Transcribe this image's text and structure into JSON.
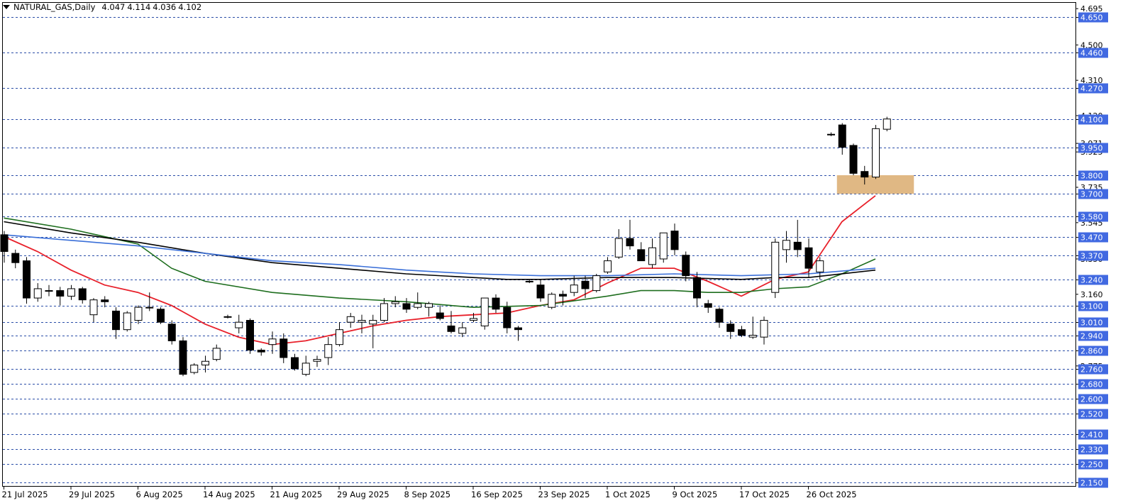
{
  "header": {
    "symbol": "NATURAL_GAS,Daily",
    "open": "4.047",
    "high": "4.114",
    "low": "4.036",
    "close": "4.102"
  },
  "colors": {
    "grid": "#2b4ea8",
    "label_bg": "#4169e1",
    "ema_fast": "#e8202a",
    "ema_mid": "#1e6e1e",
    "sma_long": "#000000",
    "ema_long": "#3a6fd8",
    "zone": "#e0b884"
  },
  "chart_data": {
    "type": "candlestick",
    "symbol": "NATURAL_GAS",
    "timeframe": "Daily",
    "ylim": [
      2.13,
      4.73
    ],
    "level_labels": [
      "4.650",
      "4.460",
      "4.270",
      "4.100",
      "3.950",
      "3.800",
      "3.700",
      "3.580",
      "3.470",
      "3.370",
      "3.240",
      "3.100",
      "3.010",
      "2.940",
      "2.860",
      "2.760",
      "2.680",
      "2.600",
      "2.520",
      "2.410",
      "2.330",
      "2.250",
      "2.150"
    ],
    "scale_ticks": [
      "4.695",
      "4.500",
      "4.310",
      "4.120",
      "3.925",
      "3.735",
      "3.545",
      "3.350",
      "3.160",
      "3.971",
      "2.775"
    ],
    "x_ticks": [
      {
        "index": 0,
        "label": "21 Jul 2025"
      },
      {
        "index": 6,
        "label": "29 Jul 2025"
      },
      {
        "index": 12,
        "label": "6 Aug 2025"
      },
      {
        "index": 18,
        "label": "14 Aug 2025"
      },
      {
        "index": 24,
        "label": "21 Aug 2025"
      },
      {
        "index": 30,
        "label": "29 Aug 2025"
      },
      {
        "index": 36,
        "label": "8 Sep 2025"
      },
      {
        "index": 42,
        "label": "16 Sep 2025"
      },
      {
        "index": 48,
        "label": "23 Sep 2025"
      },
      {
        "index": 54,
        "label": "1 Oct 2025"
      },
      {
        "index": 60,
        "label": "9 Oct 2025"
      },
      {
        "index": 66,
        "label": "17 Oct 2025"
      },
      {
        "index": 72,
        "label": "26 Oct 2025"
      }
    ],
    "candles": [
      [
        3.48,
        3.5,
        3.33,
        3.39
      ],
      [
        3.38,
        3.4,
        3.3,
        3.33
      ],
      [
        3.34,
        3.36,
        3.11,
        3.14
      ],
      [
        3.14,
        3.22,
        3.12,
        3.19
      ],
      [
        3.18,
        3.21,
        3.15,
        3.18
      ],
      [
        3.18,
        3.2,
        3.1,
        3.15
      ],
      [
        3.15,
        3.21,
        3.13,
        3.19
      ],
      [
        3.19,
        3.2,
        3.11,
        3.13
      ],
      [
        3.05,
        3.14,
        3.01,
        3.13
      ],
      [
        3.13,
        3.15,
        3.09,
        3.12
      ],
      [
        3.07,
        3.09,
        2.92,
        2.97
      ],
      [
        2.97,
        3.07,
        2.96,
        3.06
      ],
      [
        3.02,
        3.1,
        3.0,
        3.09
      ],
      [
        3.09,
        3.17,
        3.07,
        3.09
      ],
      [
        3.08,
        3.09,
        3.0,
        3.01
      ],
      [
        3.0,
        3.02,
        2.89,
        2.91
      ],
      [
        2.91,
        2.93,
        2.72,
        2.73
      ],
      [
        2.74,
        2.79,
        2.73,
        2.78
      ],
      [
        2.78,
        2.83,
        2.74,
        2.8
      ],
      [
        2.81,
        2.89,
        2.8,
        2.87
      ],
      [
        3.04,
        3.05,
        3.03,
        3.04
      ],
      [
        2.98,
        3.05,
        2.95,
        3.01
      ],
      [
        3.02,
        3.03,
        2.84,
        2.86
      ],
      [
        2.86,
        2.87,
        2.83,
        2.85
      ],
      [
        2.89,
        2.96,
        2.84,
        2.92
      ],
      [
        2.92,
        2.95,
        2.79,
        2.82
      ],
      [
        2.82,
        2.84,
        2.75,
        2.76
      ],
      [
        2.73,
        2.83,
        2.72,
        2.79
      ],
      [
        2.8,
        2.83,
        2.77,
        2.81
      ],
      [
        2.82,
        2.93,
        2.78,
        2.89
      ],
      [
        2.89,
        3.01,
        2.88,
        2.97
      ],
      [
        3.01,
        3.06,
        2.98,
        3.04
      ],
      [
        3.01,
        3.05,
        2.95,
        3.02
      ],
      [
        3.0,
        3.05,
        2.87,
        3.02
      ],
      [
        3.02,
        3.14,
        3.01,
        3.11
      ],
      [
        3.11,
        3.15,
        3.09,
        3.12
      ],
      [
        3.11,
        3.14,
        3.06,
        3.08
      ],
      [
        3.09,
        3.17,
        3.08,
        3.11
      ],
      [
        3.09,
        3.12,
        3.04,
        3.11
      ],
      [
        3.06,
        3.1,
        3.02,
        3.03
      ],
      [
        2.99,
        3.07,
        2.95,
        2.96
      ],
      [
        2.95,
        3.01,
        2.93,
        2.98
      ],
      [
        3.02,
        3.06,
        3.01,
        3.03
      ],
      [
        2.99,
        3.14,
        2.97,
        3.14
      ],
      [
        3.14,
        3.16,
        3.06,
        3.08
      ],
      [
        3.09,
        3.12,
        2.95,
        2.98
      ],
      [
        2.98,
        2.99,
        2.91,
        2.97
      ],
      [
        3.23,
        3.24,
        3.22,
        3.23
      ],
      [
        3.21,
        3.24,
        3.12,
        3.14
      ],
      [
        3.09,
        3.17,
        3.08,
        3.16
      ],
      [
        3.16,
        3.18,
        3.1,
        3.15
      ],
      [
        3.17,
        3.26,
        3.15,
        3.21
      ],
      [
        3.23,
        3.26,
        3.14,
        3.19
      ],
      [
        3.18,
        3.27,
        3.17,
        3.26
      ],
      [
        3.28,
        3.36,
        3.27,
        3.34
      ],
      [
        3.36,
        3.51,
        3.35,
        3.46
      ],
      [
        3.46,
        3.56,
        3.4,
        3.42
      ],
      [
        3.4,
        3.44,
        3.35,
        3.34
      ],
      [
        3.32,
        3.46,
        3.3,
        3.41
      ],
      [
        3.35,
        3.49,
        3.33,
        3.49
      ],
      [
        3.5,
        3.54,
        3.37,
        3.4
      ],
      [
        3.37,
        3.39,
        3.23,
        3.26
      ],
      [
        3.25,
        3.28,
        3.09,
        3.14
      ],
      [
        3.11,
        3.13,
        3.06,
        3.09
      ],
      [
        3.08,
        3.09,
        2.98,
        3.01
      ],
      [
        3.0,
        3.02,
        2.92,
        2.96
      ],
      [
        2.97,
        2.99,
        2.93,
        2.94
      ],
      [
        2.93,
        3.04,
        2.92,
        2.94
      ],
      [
        2.93,
        3.04,
        2.89,
        3.02
      ],
      [
        3.17,
        3.46,
        3.14,
        3.44
      ],
      [
        3.4,
        3.5,
        3.33,
        3.45
      ],
      [
        3.44,
        3.56,
        3.36,
        3.4
      ],
      [
        3.41,
        3.46,
        3.25,
        3.3
      ],
      [
        3.28,
        3.36,
        3.24,
        3.34
      ],
      [
        4.02,
        4.03,
        4.01,
        4.02
      ],
      [
        4.07,
        4.08,
        3.91,
        3.95
      ],
      [
        3.96,
        3.97,
        3.8,
        3.81
      ],
      [
        3.82,
        3.85,
        3.75,
        3.79
      ],
      [
        3.79,
        4.07,
        3.78,
        4.05
      ],
      [
        4.047,
        4.114,
        4.036,
        4.102
      ]
    ],
    "moving_averages": [
      {
        "color": "#e8202a",
        "points": [
          [
            0,
            3.47
          ],
          [
            3,
            3.39
          ],
          [
            6,
            3.29
          ],
          [
            9,
            3.21
          ],
          [
            12,
            3.17
          ],
          [
            15,
            3.1
          ],
          [
            18,
            3.0
          ],
          [
            21,
            2.93
          ],
          [
            24,
            2.89
          ],
          [
            27,
            2.91
          ],
          [
            30,
            2.95
          ],
          [
            33,
            2.99
          ],
          [
            36,
            3.02
          ],
          [
            39,
            3.04
          ],
          [
            42,
            3.05
          ],
          [
            45,
            3.06
          ],
          [
            48,
            3.1
          ],
          [
            51,
            3.13
          ],
          [
            54,
            3.22
          ],
          [
            57,
            3.3
          ],
          [
            60,
            3.3
          ],
          [
            63,
            3.23
          ],
          [
            66,
            3.15
          ],
          [
            69,
            3.24
          ],
          [
            72,
            3.28
          ],
          [
            75,
            3.55
          ],
          [
            78,
            3.69
          ]
        ]
      },
      {
        "color": "#1e6e1e",
        "points": [
          [
            0,
            3.57
          ],
          [
            6,
            3.51
          ],
          [
            12,
            3.43
          ],
          [
            15,
            3.3
          ],
          [
            18,
            3.23
          ],
          [
            24,
            3.17
          ],
          [
            30,
            3.14
          ],
          [
            36,
            3.12
          ],
          [
            42,
            3.09
          ],
          [
            48,
            3.1
          ],
          [
            54,
            3.15
          ],
          [
            57,
            3.18
          ],
          [
            60,
            3.18
          ],
          [
            63,
            3.17
          ],
          [
            66,
            3.17
          ],
          [
            69,
            3.19
          ],
          [
            72,
            3.2
          ],
          [
            75,
            3.27
          ],
          [
            78,
            3.35
          ]
        ]
      },
      {
        "color": "#000000",
        "points": [
          [
            0,
            3.55
          ],
          [
            6,
            3.49
          ],
          [
            12,
            3.44
          ],
          [
            18,
            3.38
          ],
          [
            24,
            3.33
          ],
          [
            30,
            3.3
          ],
          [
            36,
            3.27
          ],
          [
            42,
            3.25
          ],
          [
            45,
            3.24
          ],
          [
            48,
            3.24
          ],
          [
            54,
            3.25
          ],
          [
            60,
            3.25
          ],
          [
            66,
            3.24
          ],
          [
            69,
            3.25
          ],
          [
            72,
            3.25
          ],
          [
            78,
            3.29
          ]
        ]
      },
      {
        "color": "#3a6fd8",
        "points": [
          [
            0,
            3.48
          ],
          [
            6,
            3.45
          ],
          [
            12,
            3.42
          ],
          [
            18,
            3.38
          ],
          [
            24,
            3.34
          ],
          [
            30,
            3.32
          ],
          [
            36,
            3.29
          ],
          [
            42,
            3.27
          ],
          [
            48,
            3.26
          ],
          [
            54,
            3.26
          ],
          [
            60,
            3.27
          ],
          [
            66,
            3.26
          ],
          [
            72,
            3.27
          ],
          [
            78,
            3.3
          ]
        ]
      }
    ],
    "zone": {
      "from_index": 75,
      "to_index": 81,
      "y_low": 3.7,
      "y_high": 3.8,
      "color": "#e0b884"
    }
  }
}
